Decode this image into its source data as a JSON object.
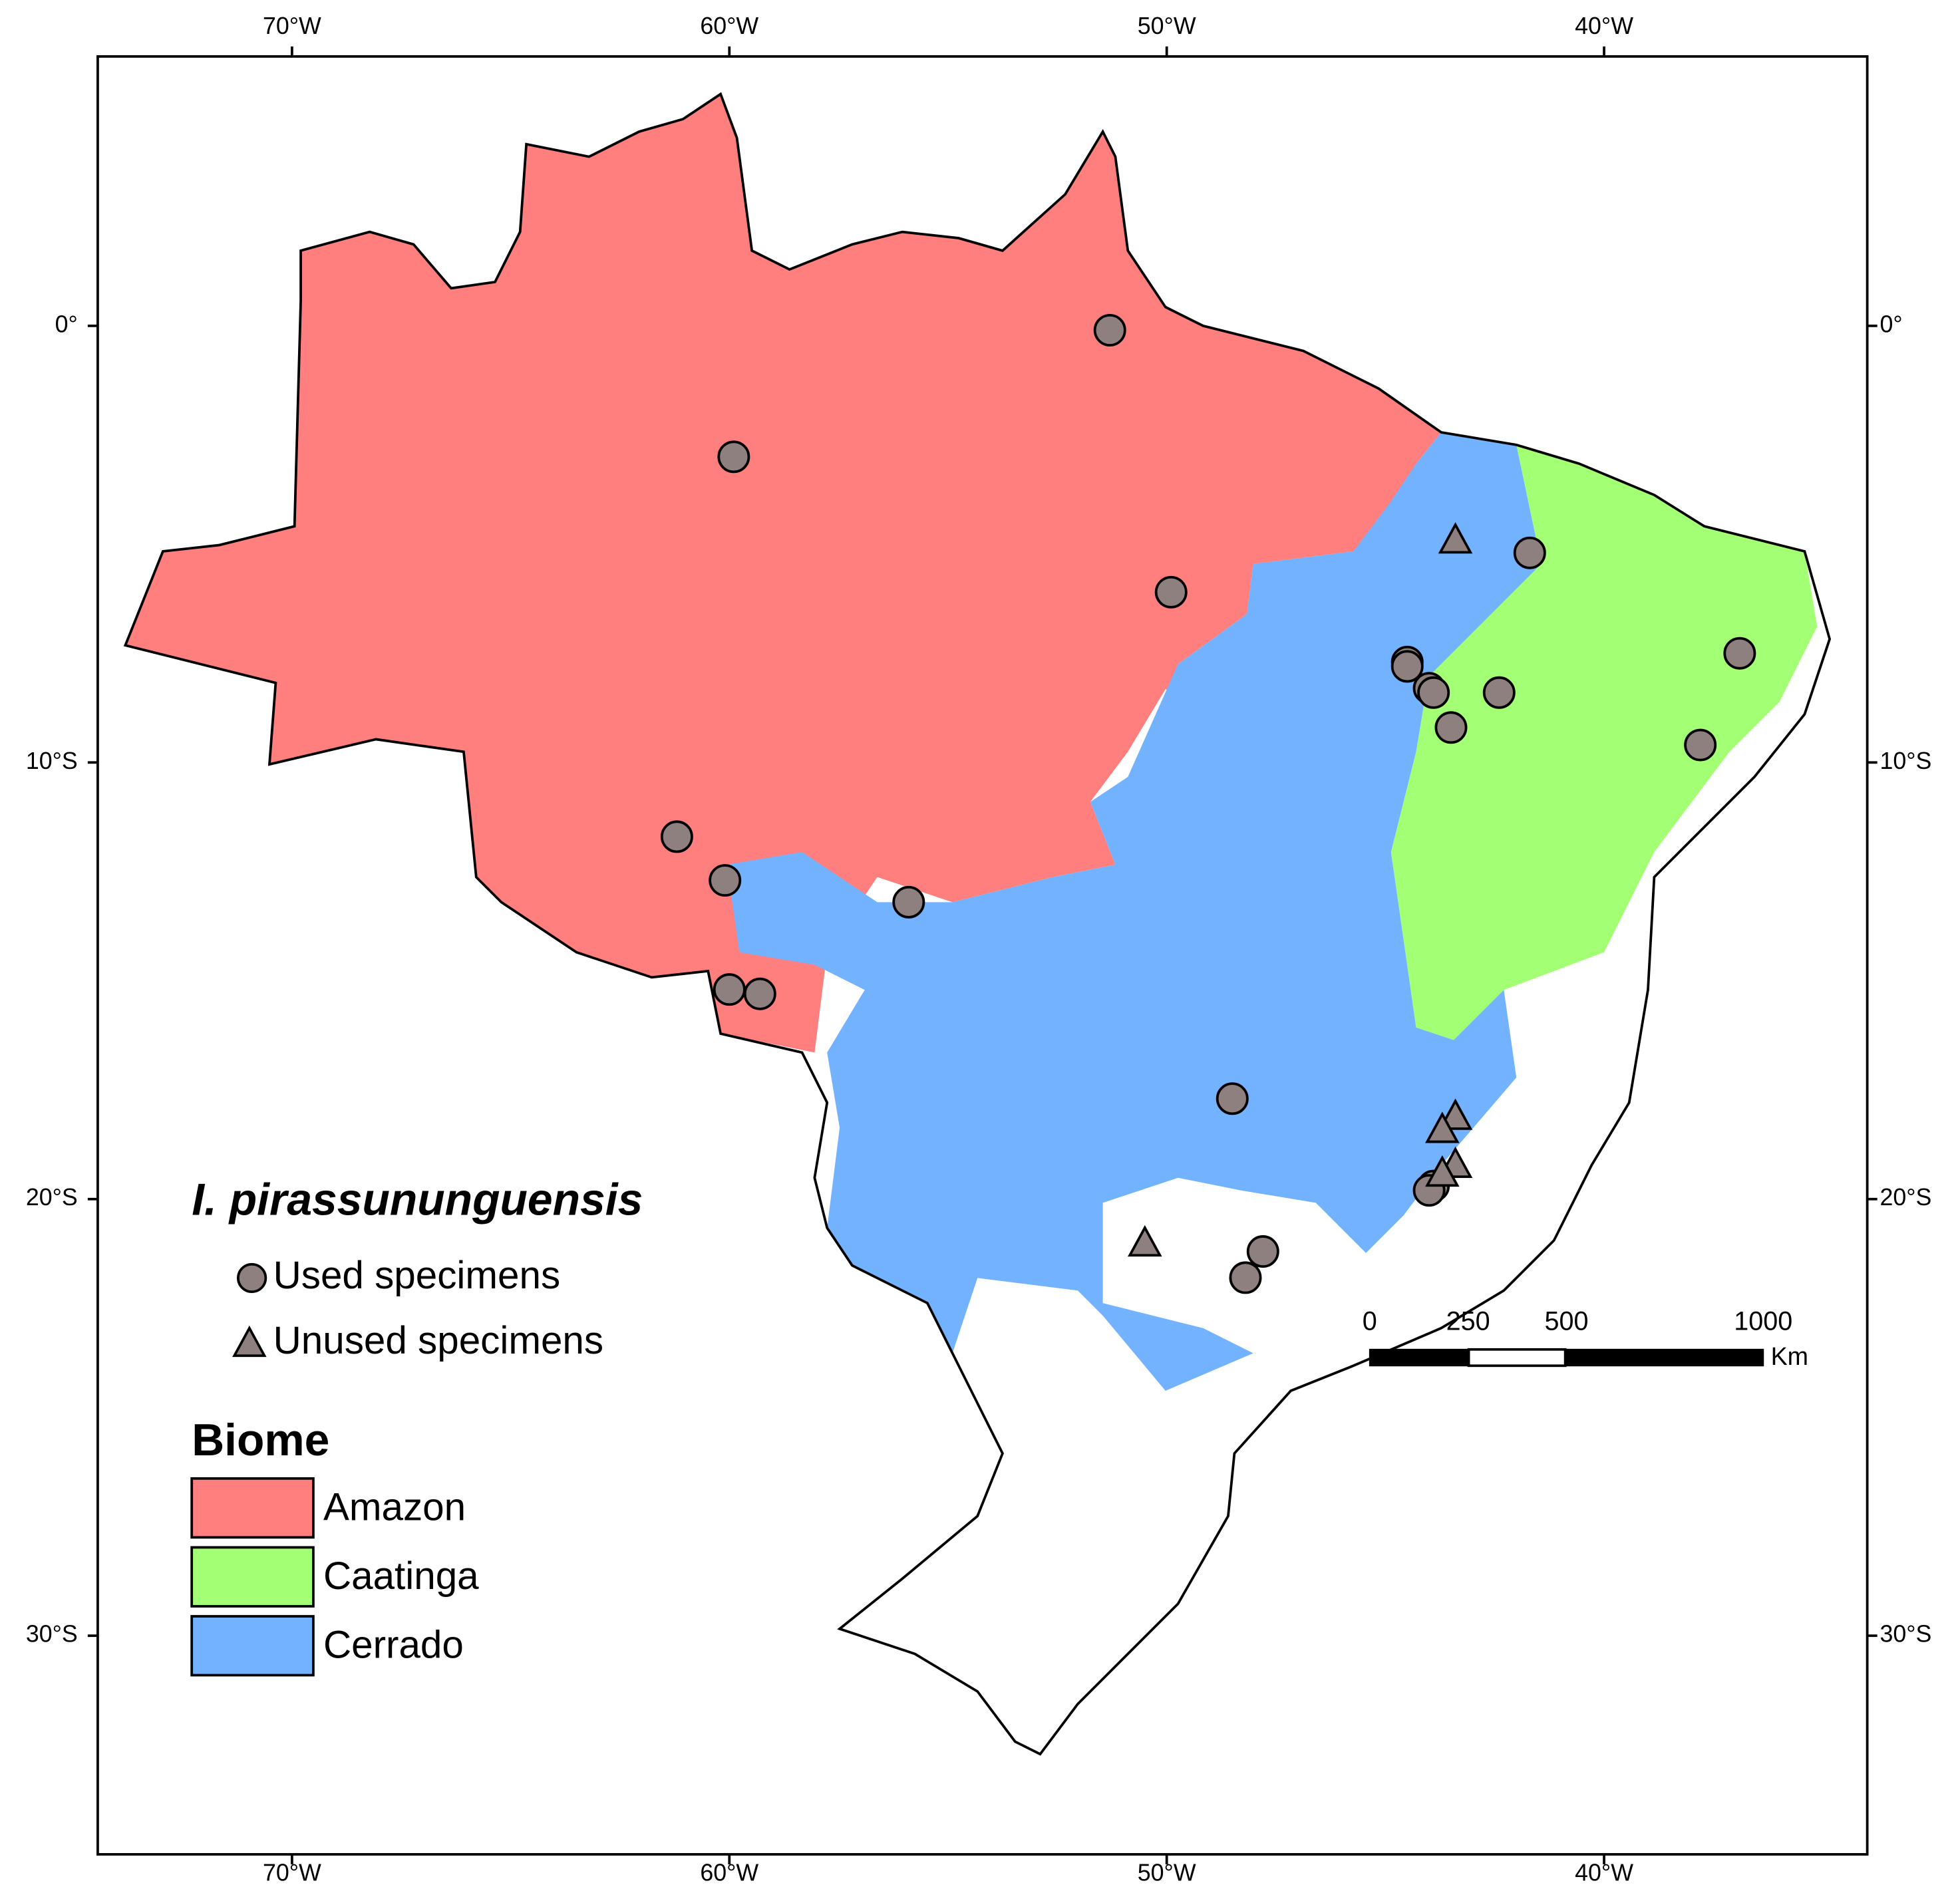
{
  "map": {
    "lon_ticks": [
      {
        "value": -70,
        "label": "70°W"
      },
      {
        "value": -60,
        "label": "60°W"
      },
      {
        "value": -50,
        "label": "50°W"
      },
      {
        "value": -40,
        "label": "40°W"
      }
    ],
    "lat_ticks": [
      {
        "value": 0,
        "label": "0°"
      },
      {
        "value": -10,
        "label": "10°S"
      },
      {
        "value": -20,
        "label": "20°S"
      },
      {
        "value": -30,
        "label": "30°S"
      }
    ],
    "used_specimens": [
      {
        "lon": -51.3,
        "lat": -0.1
      },
      {
        "lon": -59.9,
        "lat": -3.0
      },
      {
        "lon": -49.9,
        "lat": -6.1
      },
      {
        "lon": -41.7,
        "lat": -5.2
      },
      {
        "lon": -44.5,
        "lat": -7.7
      },
      {
        "lon": -44.5,
        "lat": -7.8
      },
      {
        "lon": -44.0,
        "lat": -8.3
      },
      {
        "lon": -43.9,
        "lat": -8.4
      },
      {
        "lon": -42.4,
        "lat": -8.4
      },
      {
        "lon": -43.5,
        "lat": -9.2
      },
      {
        "lon": -36.9,
        "lat": -7.5
      },
      {
        "lon": -37.8,
        "lat": -9.6
      },
      {
        "lon": -61.2,
        "lat": -11.7
      },
      {
        "lon": -60.1,
        "lat": -12.7
      },
      {
        "lon": -55.9,
        "lat": -13.2
      },
      {
        "lon": -60.0,
        "lat": -15.2
      },
      {
        "lon": -59.3,
        "lat": -15.3
      },
      {
        "lon": -48.5,
        "lat": -17.7
      },
      {
        "lon": -43.9,
        "lat": -19.7
      },
      {
        "lon": -44.0,
        "lat": -19.8
      },
      {
        "lon": -47.8,
        "lat": -21.2
      },
      {
        "lon": -48.2,
        "lat": -21.8
      }
    ],
    "unused_specimens": [
      {
        "lon": -43.4,
        "lat": -4.9
      },
      {
        "lon": -43.4,
        "lat": -18.1
      },
      {
        "lon": -43.7,
        "lat": -18.4
      },
      {
        "lon": -43.4,
        "lat": -19.2
      },
      {
        "lon": -43.7,
        "lat": -19.4
      },
      {
        "lon": -50.5,
        "lat": -21.0
      }
    ]
  },
  "legend": {
    "species": "I. pirassununguensis",
    "used_label": "Used specimens",
    "unused_label": "Unused specimens",
    "biome_title": "Biome",
    "biomes": [
      {
        "label": "Amazon",
        "color": "#ff7f7f"
      },
      {
        "label": "Caatinga",
        "color": "#a3ff73"
      },
      {
        "label": "Cerrado",
        "color": "#73b2ff"
      }
    ]
  },
  "scale_bar": {
    "ticks": [
      0,
      250,
      500,
      1000
    ],
    "unit": "Km"
  }
}
